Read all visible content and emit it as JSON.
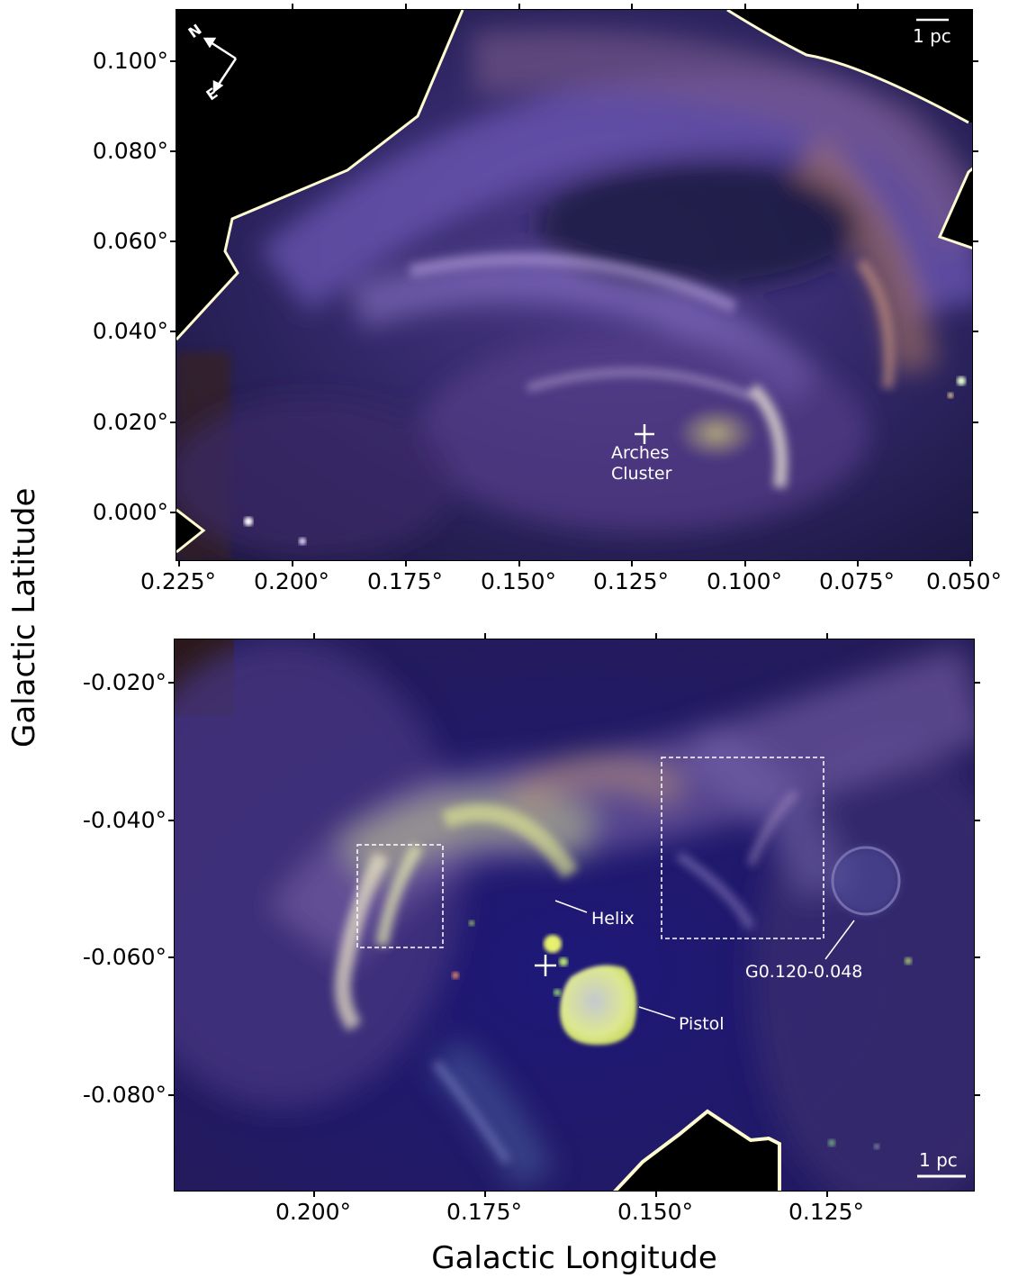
{
  "axes": {
    "xlabel": "Galactic Longitude",
    "ylabel": "Galactic Latitude"
  },
  "top_panel": {
    "x_ticks": [
      "0.225°",
      "0.200°",
      "0.175°",
      "0.150°",
      "0.125°",
      "0.100°",
      "0.075°",
      "0.050°"
    ],
    "y_ticks": [
      "0.100°",
      "0.080°",
      "0.060°",
      "0.040°",
      "0.020°",
      "0.000°"
    ],
    "compass": {
      "north": "N",
      "east": "E"
    },
    "scale_bar": "1 pc",
    "annotation": {
      "line1": "Arches",
      "line2": "Cluster"
    }
  },
  "bottom_panel": {
    "x_ticks": [
      "0.200°",
      "0.175°",
      "0.150°",
      "0.125°"
    ],
    "y_ticks": [
      "-0.020°",
      "-0.040°",
      "-0.060°",
      "-0.080°"
    ],
    "scale_bar": "1 pc",
    "annotations": {
      "helix": "Helix",
      "pistol": "Pistol",
      "g0120": "G0.120-0.048"
    }
  },
  "colors": {
    "background": "#1a1450",
    "filament_purple": "#7a5fb0",
    "filament_orange": "#b07a60",
    "bright_yellow": "#dfe890",
    "footprint_edge": "#fffbd0"
  }
}
